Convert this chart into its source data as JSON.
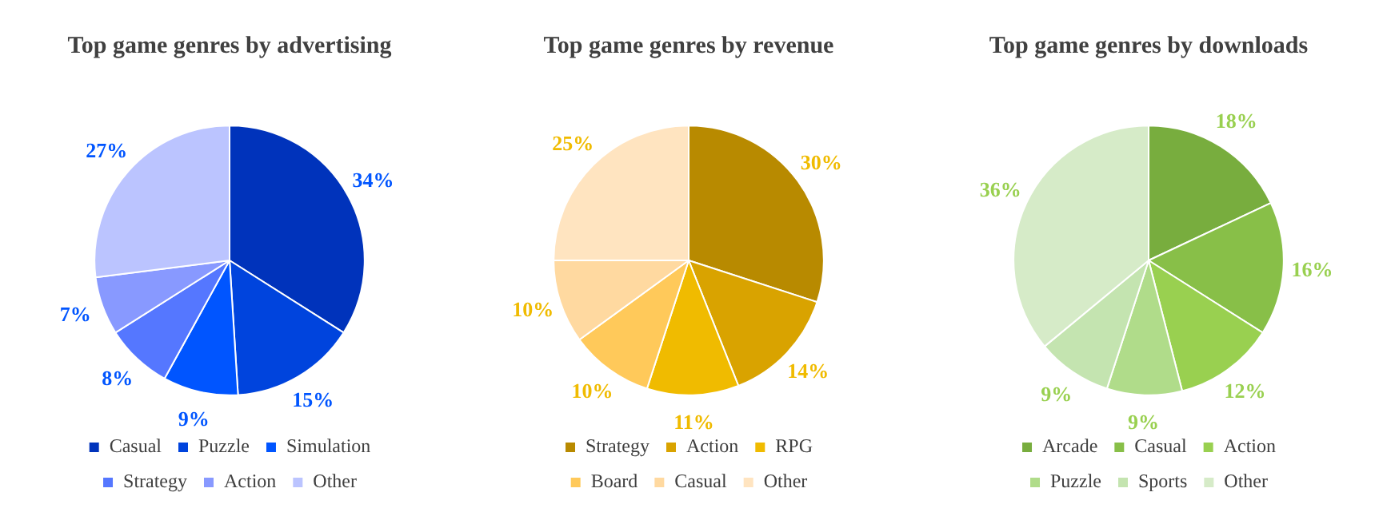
{
  "chart_data": [
    {
      "type": "pie",
      "title": "Top game genres by advertising",
      "categories": [
        "Casual",
        "Puzzle",
        "Simulation",
        "Strategy",
        "Action",
        "Other"
      ],
      "values": [
        34,
        15,
        9,
        8,
        7,
        27
      ],
      "colors": [
        "#0033bb",
        "#0044dd",
        "#0055ff",
        "#5577ff",
        "#8899ff",
        "#bbc4ff"
      ],
      "value_labels": [
        "34%",
        "15%",
        "9%",
        "8%",
        "7%",
        "27%"
      ],
      "legend": "bottom"
    },
    {
      "type": "pie",
      "title": "Top game genres by revenue",
      "categories": [
        "Strategy",
        "Action",
        "RPG",
        "Board",
        "Casual",
        "Other"
      ],
      "values": [
        30,
        14,
        11,
        10,
        10,
        25
      ],
      "colors": [
        "#b88a00",
        "#d9a300",
        "#f0bb00",
        "#ffc95a",
        "#ffd9a0",
        "#ffe4c0"
      ],
      "value_labels": [
        "30%",
        "14%",
        "11%",
        "10%",
        "10%",
        "25%"
      ],
      "legend": "bottom"
    },
    {
      "type": "pie",
      "title": "Top game genres by downloads",
      "categories": [
        "Arcade",
        "Casual",
        "Action",
        "Puzzle",
        "Sports",
        "Other"
      ],
      "values": [
        18,
        16,
        12,
        9,
        9,
        36
      ],
      "colors": [
        "#78ad3e",
        "#88bf48",
        "#99d050",
        "#b0dc8a",
        "#c4e4b0",
        "#d6ebc8"
      ],
      "value_labels": [
        "18%",
        "16%",
        "12%",
        "9%",
        "9%",
        "36%"
      ],
      "legend": "bottom"
    }
  ]
}
